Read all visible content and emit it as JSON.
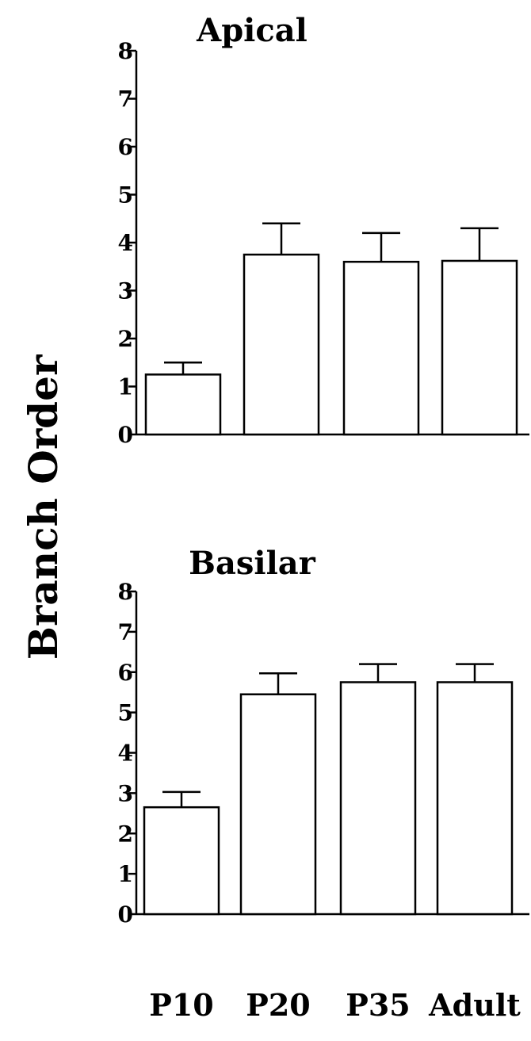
{
  "figure": {
    "ylabel": "Branch Order"
  },
  "chart_data": [
    {
      "type": "bar",
      "title": "Apical",
      "categories": [
        "P10",
        "P20",
        "P35",
        "Adult"
      ],
      "values": [
        1.25,
        3.75,
        3.6,
        3.62
      ],
      "errors": [
        0.25,
        0.65,
        0.6,
        0.68
      ],
      "ylim": [
        0,
        8
      ],
      "yticks": [
        0,
        1,
        2,
        3,
        4,
        5,
        6,
        7,
        8
      ],
      "xlabel": "",
      "ylabel": "Branch Order",
      "grid": false,
      "show_category_labels": false
    },
    {
      "type": "bar",
      "title": "Basilar",
      "categories": [
        "P10",
        "P20",
        "P35",
        "Adult"
      ],
      "values": [
        2.65,
        5.45,
        5.75,
        5.75
      ],
      "errors": [
        0.38,
        0.52,
        0.45,
        0.45
      ],
      "ylim": [
        0,
        8
      ],
      "yticks": [
        0,
        1,
        2,
        3,
        4,
        5,
        6,
        7,
        8
      ],
      "xlabel": "",
      "ylabel": "Branch Order",
      "grid": false,
      "show_category_labels": true
    }
  ]
}
